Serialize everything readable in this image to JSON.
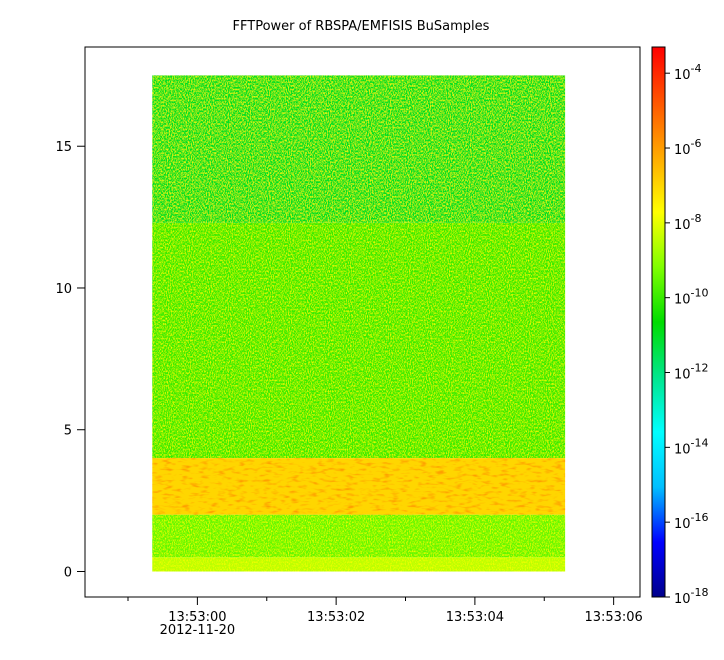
{
  "chart_data": {
    "type": "heatmap",
    "title": "FFTPower of RBSPA/EMFISIS  BuSamples",
    "x": {
      "ticks": [
        {
          "value": 0,
          "label": "13:53:00",
          "sublabel": "2012-11-20"
        },
        {
          "value": 2,
          "label": "13:53:02",
          "sublabel": ""
        },
        {
          "value": 4,
          "label": "13:53:04",
          "sublabel": ""
        },
        {
          "value": 6,
          "label": "13:53:06",
          "sublabel": ""
        }
      ],
      "minor_ticks": [
        -1,
        1,
        3,
        5
      ],
      "range": [
        -1.62,
        6.38
      ],
      "data_range": [
        -0.65,
        5.3
      ]
    },
    "y": {
      "ticks": [
        {
          "value": 0,
          "label": "0"
        },
        {
          "value": 5,
          "label": "5"
        },
        {
          "value": 10,
          "label": "10"
        },
        {
          "value": 15,
          "label": "15"
        }
      ],
      "range": [
        -0.9,
        18.5
      ],
      "data_range": [
        0,
        17.5
      ]
    },
    "colorbar": {
      "scale": "log",
      "range_exponent": [
        -18,
        -3.3
      ],
      "ticks": [
        {
          "exponent": -4,
          "base": "10",
          "exp": "-4"
        },
        {
          "exponent": -6,
          "base": "10",
          "exp": "-6"
        },
        {
          "exponent": -8,
          "base": "10",
          "exp": "-8"
        },
        {
          "exponent": -10,
          "base": "10",
          "exp": "-10"
        },
        {
          "exponent": -12,
          "base": "10",
          "exp": "-12"
        },
        {
          "exponent": -14,
          "base": "10",
          "exp": "-14"
        },
        {
          "exponent": -16,
          "base": "10",
          "exp": "-16"
        },
        {
          "exponent": -18,
          "base": "10",
          "exp": "-18"
        }
      ],
      "colormap": [
        "#00008b",
        "#0000ff",
        "#00bfff",
        "#00ffff",
        "#00e68c",
        "#00dd00",
        "#80ff00",
        "#ffff00",
        "#ffaa00",
        "#ff5500",
        "#ff0000"
      ]
    },
    "regions": [
      {
        "y": [
          12.3,
          17.5
        ],
        "level_exponent": -11
      },
      {
        "y": [
          4.0,
          12.3
        ],
        "level_exponent": -10
      },
      {
        "y": [
          2.0,
          4.0
        ],
        "level_exponent": -7
      },
      {
        "y": [
          0.5,
          2.0
        ],
        "level_exponent": -9.5
      },
      {
        "y": [
          0.0,
          0.5
        ],
        "level_exponent": -8.5
      }
    ],
    "grid": false,
    "legend": "none"
  }
}
